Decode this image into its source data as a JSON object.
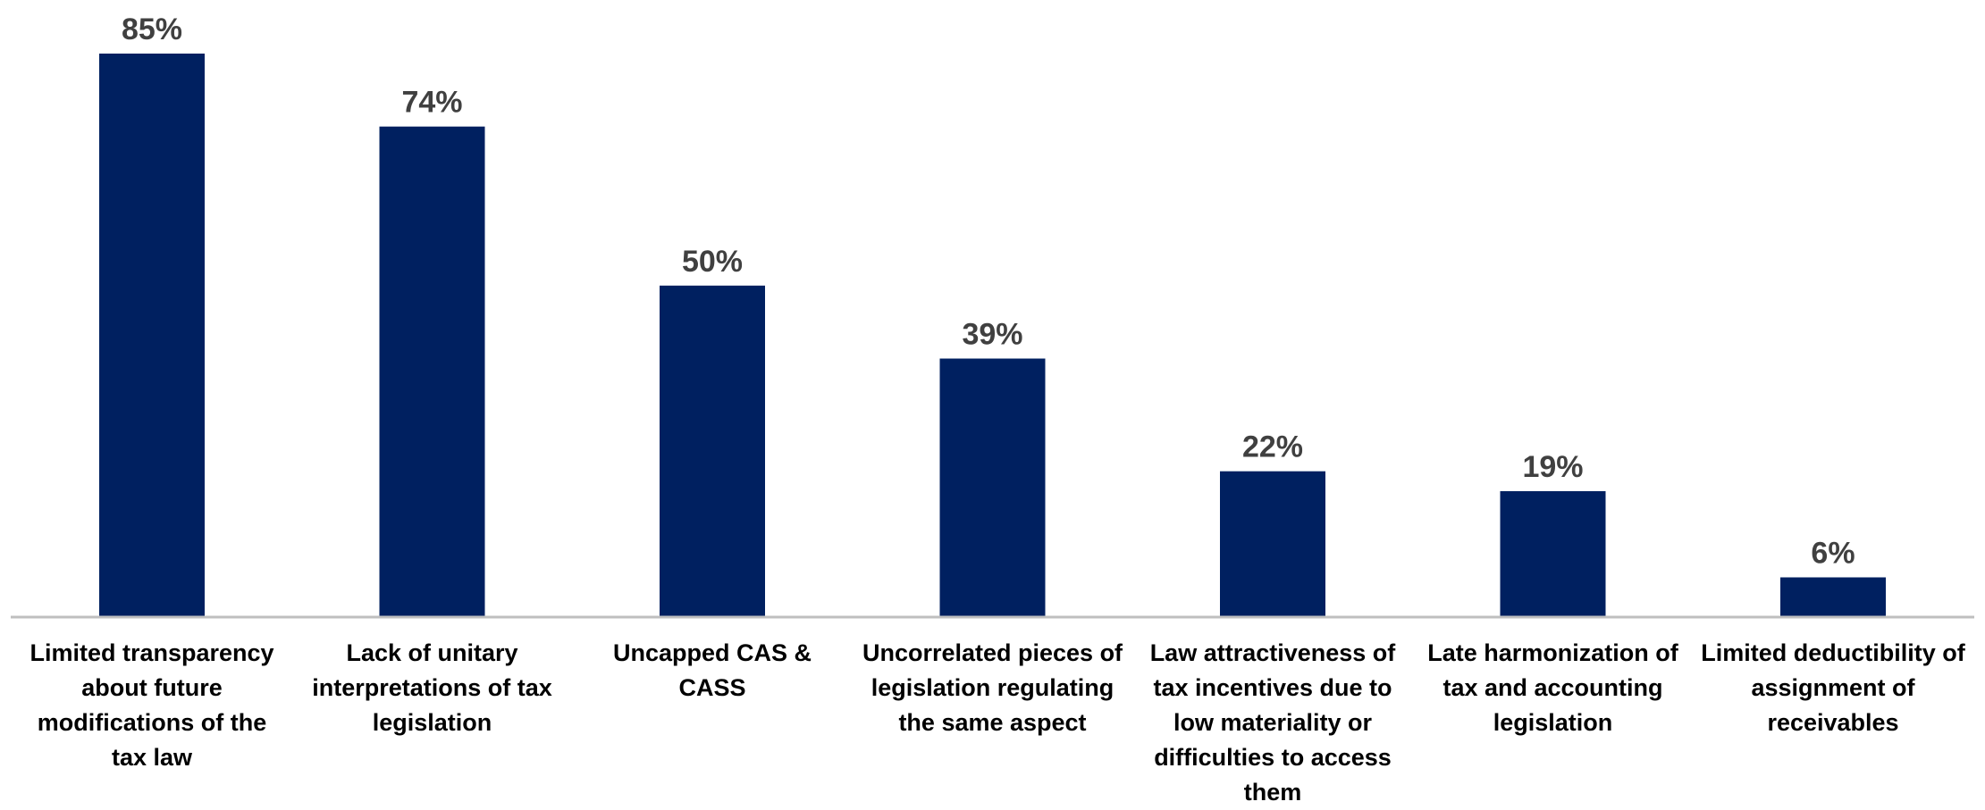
{
  "colors": {
    "bar": "#002060",
    "data_label": "#404040",
    "axis": "#bfbfbf",
    "category_label": "#000000"
  },
  "chart_data": {
    "type": "bar",
    "categories": [
      "Limited transparency about future modifications of the tax law",
      "Lack of unitary interpretations of tax legislation",
      "Uncapped CAS & CASS",
      "Uncorrelated pieces of legislation regulating the same aspect",
      "Law attractiveness of tax incentives due to low materiality or difficulties to access them",
      "Late harmonization of tax and accounting legislation",
      "Limited deductibility of assignment of receivables"
    ],
    "values": [
      85,
      74,
      50,
      39,
      22,
      19,
      6
    ],
    "data_labels": [
      "85%",
      "74%",
      "50%",
      "39%",
      "22%",
      "19%",
      "6%"
    ],
    "ylim": [
      0,
      100
    ],
    "grid": false,
    "legend": "none",
    "title": "",
    "xlabel": "",
    "ylabel": ""
  }
}
